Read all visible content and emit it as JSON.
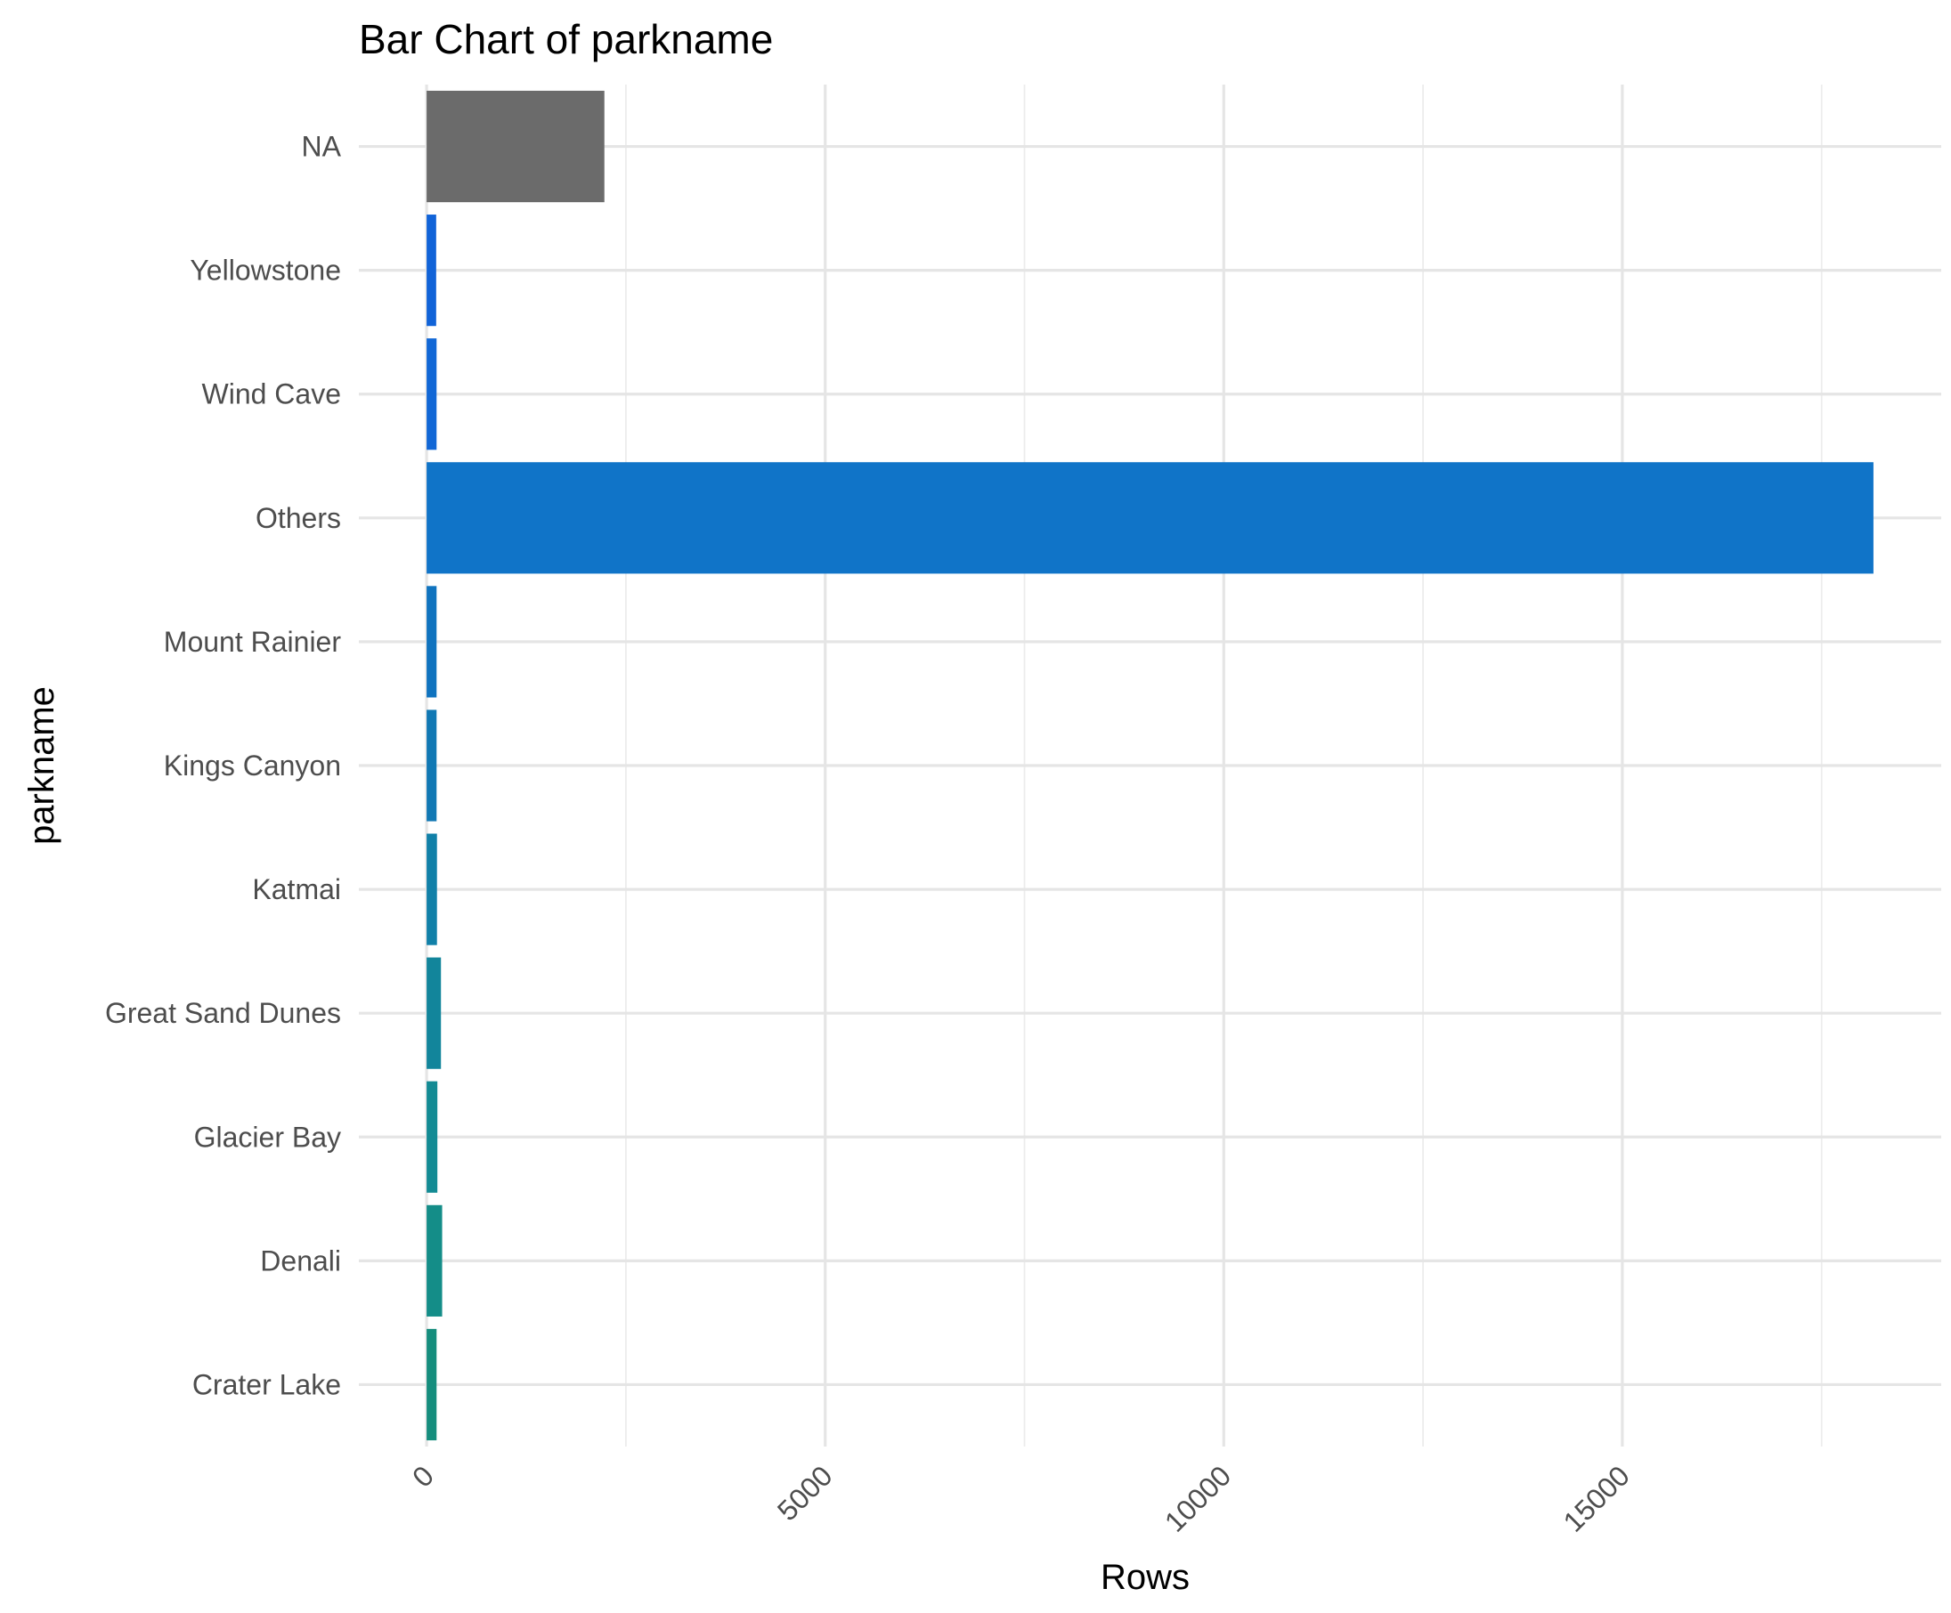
{
  "chart_data": {
    "type": "bar",
    "orientation": "horizontal",
    "title": "Bar Chart of parkname",
    "xlabel": "Rows",
    "ylabel": "parkname",
    "categories": [
      "NA",
      "Yellowstone",
      "Wind Cave",
      "Others",
      "Mount Rainier",
      "Kings Canyon",
      "Katmai",
      "Great Sand Dunes",
      "Glacier Bay",
      "Denali",
      "Crater Lake"
    ],
    "values": [
      2230,
      120,
      125,
      18150,
      125,
      125,
      130,
      180,
      135,
      195,
      125
    ],
    "colors": [
      "#6b6b6b",
      "#1163d8",
      "#1167d6",
      "#1074c8",
      "#0f73bf",
      "#1078b4",
      "#1180a8",
      "#12859b",
      "#138b94",
      "#148d88",
      "#158d7d"
    ],
    "xlim": [
      -850,
      19000
    ],
    "xticks": [
      0,
      5000,
      10000,
      15000
    ],
    "xtick_labels": [
      "0",
      "5000",
      "10000",
      "15000"
    ],
    "grid": true,
    "legend": "none"
  }
}
